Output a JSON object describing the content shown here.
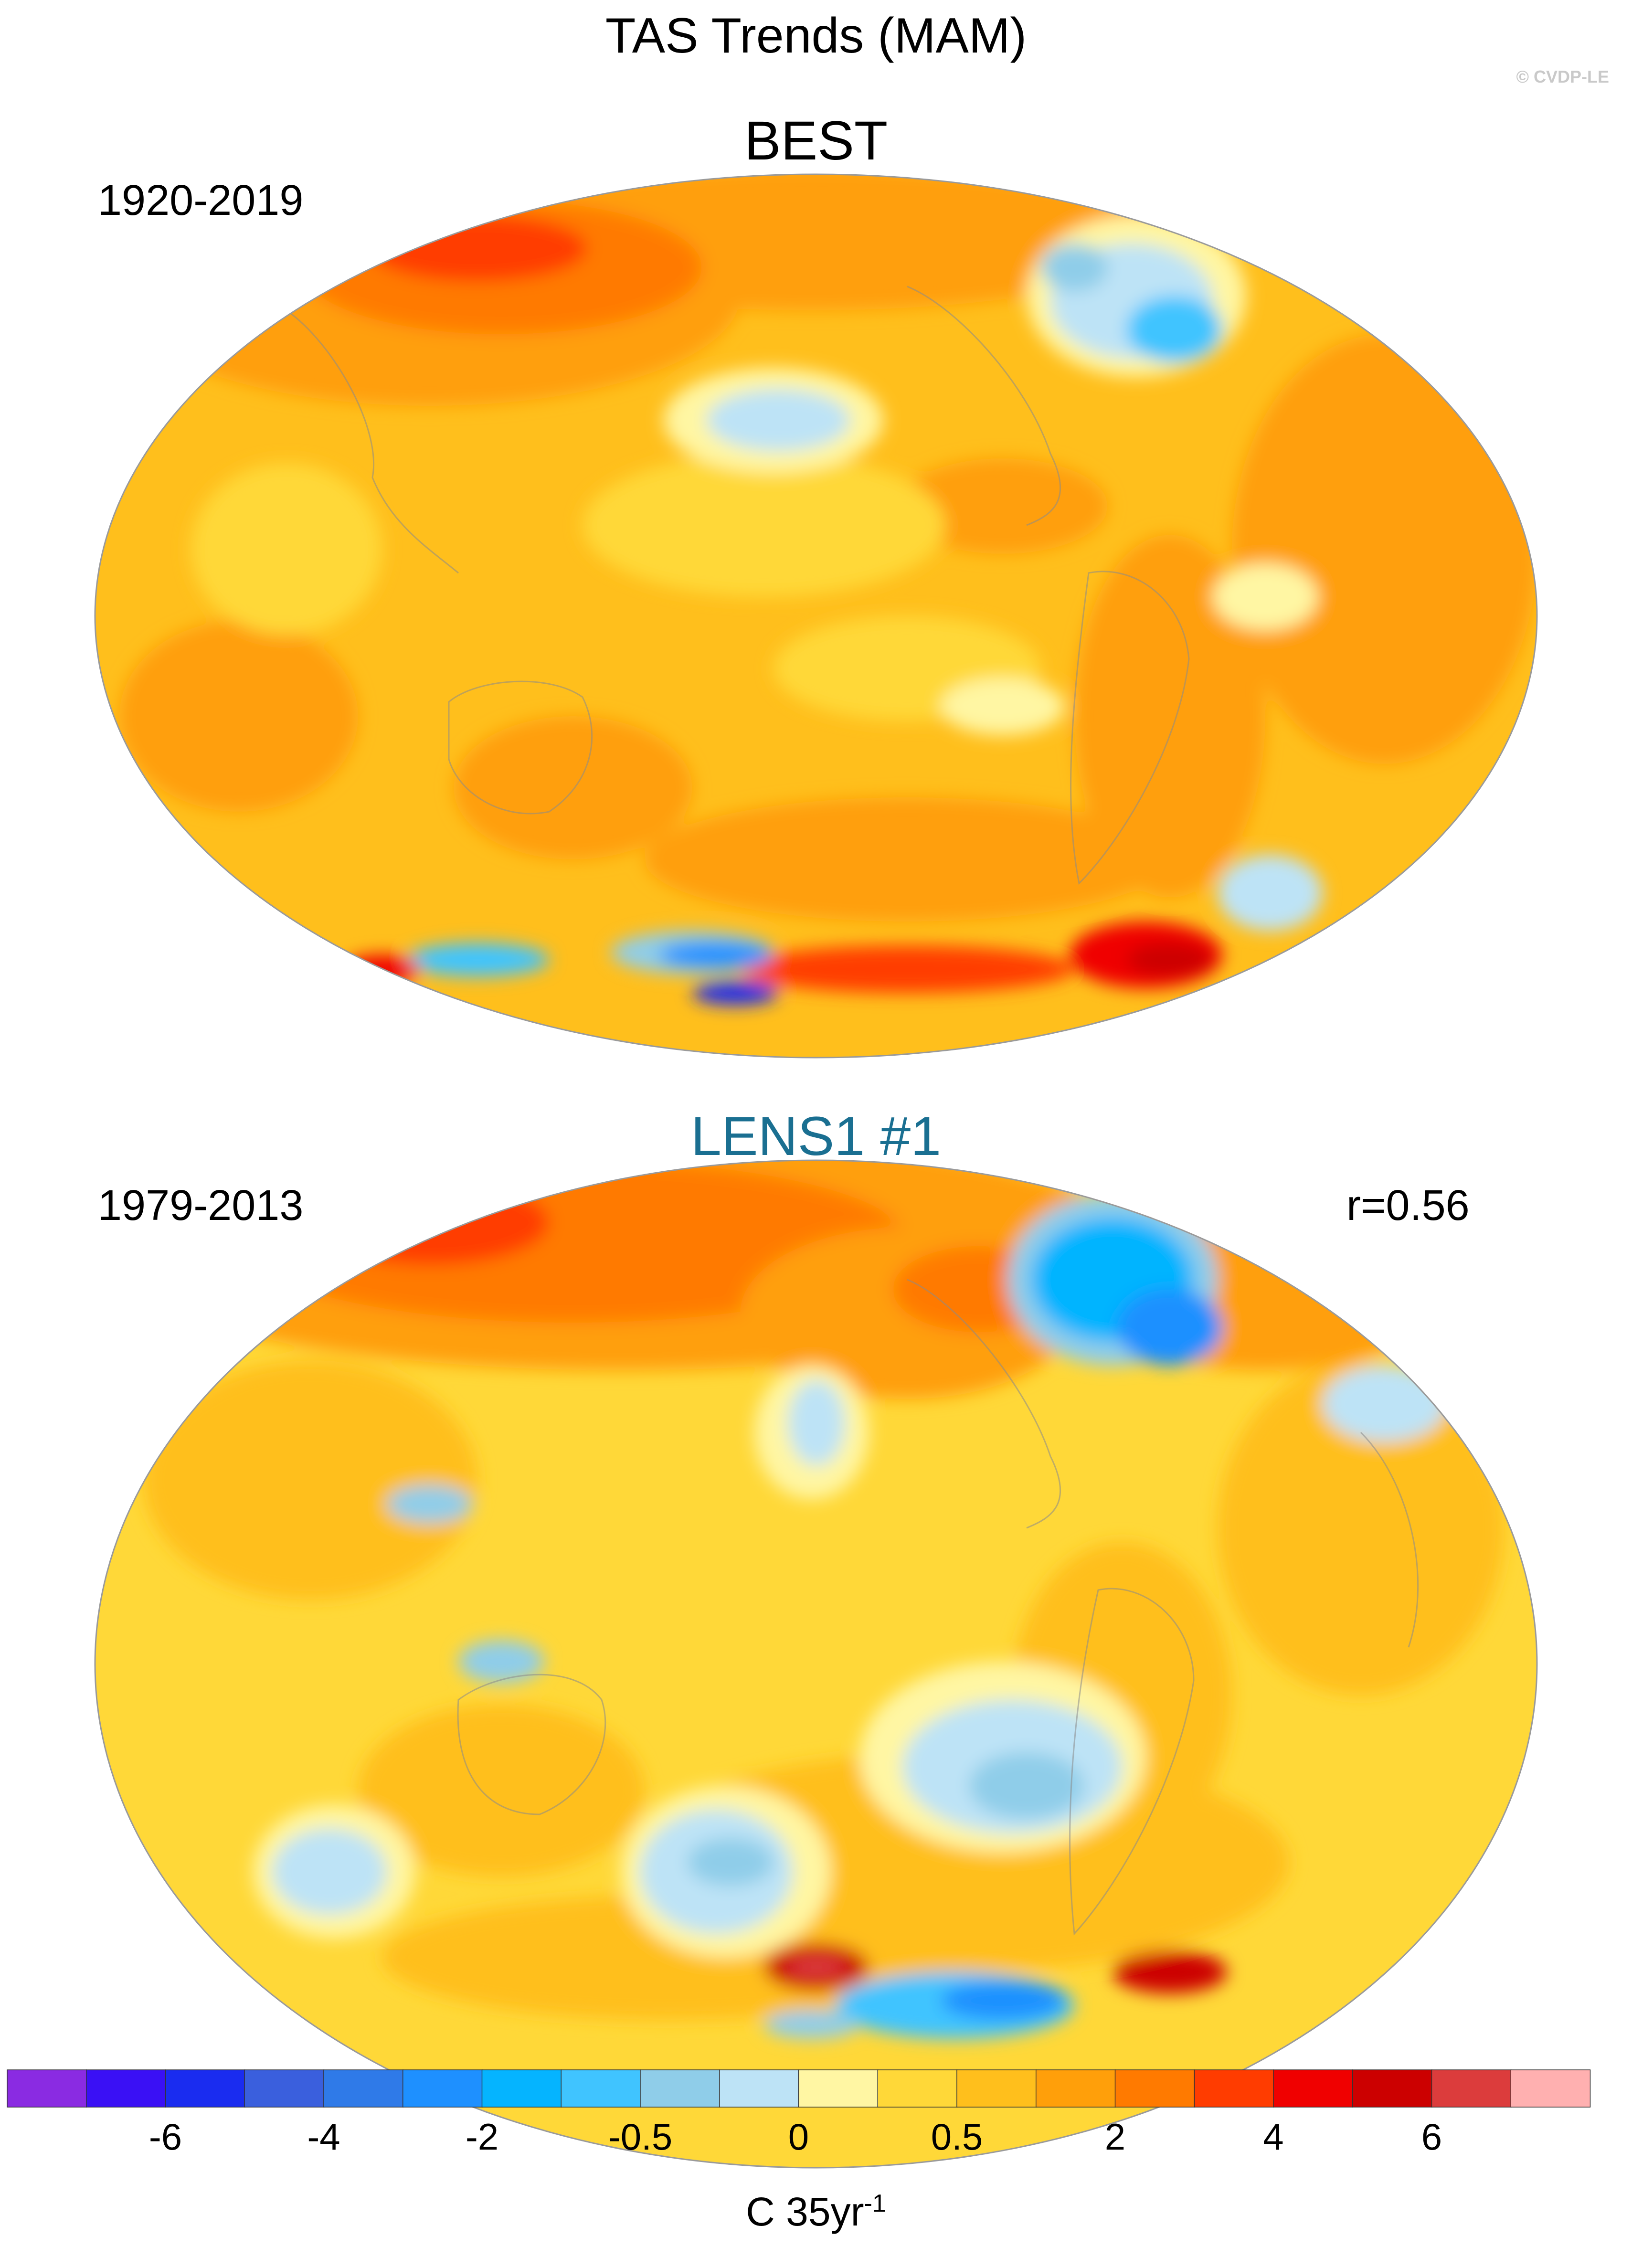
{
  "title": "TAS Trends (MAM)",
  "credit": "© CVDP-LE",
  "panels": [
    {
      "name": "BEST",
      "period": "1920-2019",
      "r": "",
      "name_color": "#000000"
    },
    {
      "name": "LENS1 #1",
      "period": "1979-2013",
      "r": "r=0.56",
      "name_color": "#1a6f91"
    }
  ],
  "colorbar": {
    "colors": [
      "#8a2be2",
      "#3a10f5",
      "#1a2cf0",
      "#3a5fdd",
      "#2f7ae8",
      "#1e90ff",
      "#05b4ff",
      "#40c4ff",
      "#8fcde9",
      "#bde3f6",
      "#fff6a3",
      "#ffd838",
      "#ffbf1c",
      "#ff9f0a",
      "#ff7a00",
      "#ff3c00",
      "#f00000",
      "#cc0000",
      "#dc3c3c",
      "#ffb0b0"
    ],
    "tick_labels": [
      "-6",
      "-4",
      "-2",
      "-0.5",
      "0",
      "0.5",
      "2",
      "4",
      "6"
    ],
    "units": "C 35yr",
    "units_sup": "-1"
  }
}
